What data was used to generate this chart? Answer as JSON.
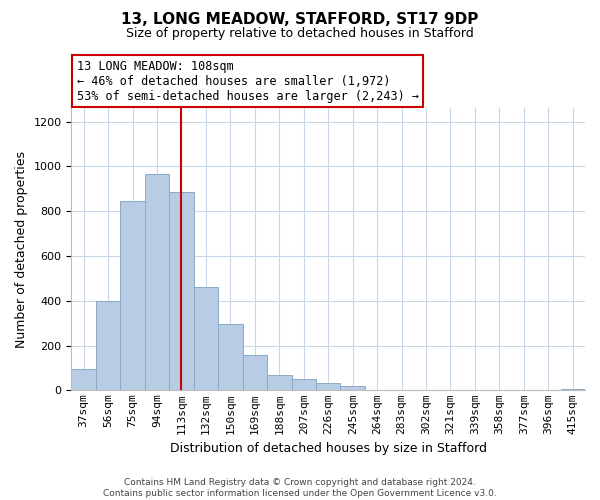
{
  "title1": "13, LONG MEADOW, STAFFORD, ST17 9DP",
  "title2": "Size of property relative to detached houses in Stafford",
  "xlabel": "Distribution of detached houses by size in Stafford",
  "ylabel": "Number of detached properties",
  "categories": [
    "37sqm",
    "56sqm",
    "75sqm",
    "94sqm",
    "113sqm",
    "132sqm",
    "150sqm",
    "169sqm",
    "188sqm",
    "207sqm",
    "226sqm",
    "245sqm",
    "264sqm",
    "283sqm",
    "302sqm",
    "321sqm",
    "339sqm",
    "358sqm",
    "377sqm",
    "396sqm",
    "415sqm"
  ],
  "values": [
    95,
    400,
    845,
    965,
    885,
    460,
    295,
    160,
    70,
    50,
    32,
    20,
    0,
    0,
    0,
    0,
    0,
    0,
    0,
    0,
    8
  ],
  "bar_color": "#b8cce4",
  "bar_edgecolor": "#8aaac8",
  "vline_x_index": 4,
  "vline_color": "#cc0000",
  "annotation_line1": "13 LONG MEADOW: 108sqm",
  "annotation_line2": "← 46% of detached houses are smaller (1,972)",
  "annotation_line3": "53% of semi-detached houses are larger (2,243) →",
  "annotation_box_edgecolor": "#cc0000",
  "annotation_box_facecolor": "#ffffff",
  "ylim": [
    0,
    1260
  ],
  "yticks": [
    0,
    200,
    400,
    600,
    800,
    1000,
    1200
  ],
  "footer_text": "Contains HM Land Registry data © Crown copyright and database right 2024.\nContains public sector information licensed under the Open Government Licence v3.0.",
  "background_color": "#ffffff",
  "grid_color": "#c8d8e8",
  "title1_fontsize": 11,
  "title2_fontsize": 9,
  "ylabel_fontsize": 9,
  "xlabel_fontsize": 9,
  "annotation_fontsize": 8.5,
  "tick_fontsize": 8,
  "footer_fontsize": 6.5
}
